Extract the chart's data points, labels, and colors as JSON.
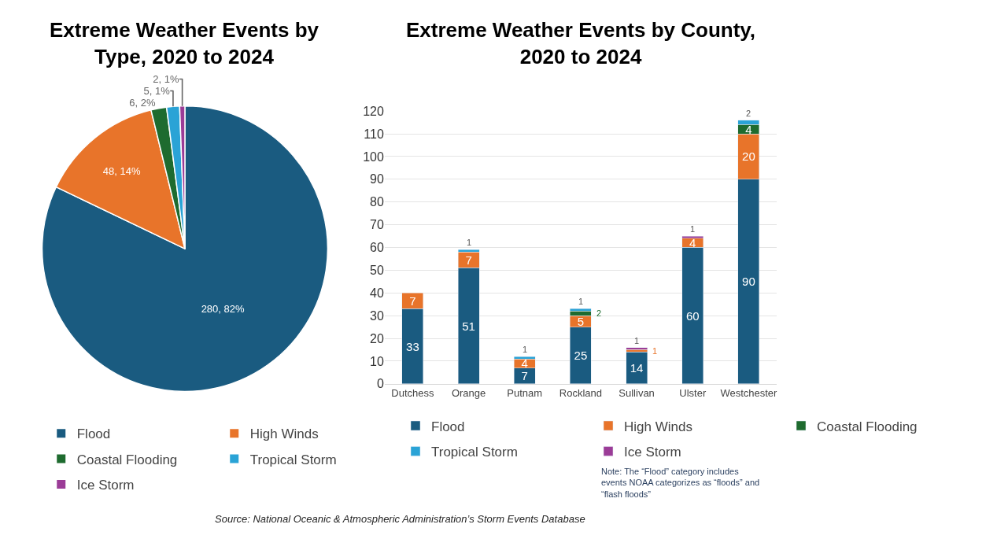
{
  "chart_data": [
    {
      "type": "pie",
      "title": "Extreme Weather Events by\nType, 2020 to 2024",
      "categories": [
        "Flood",
        "High Winds",
        "Coastal Flooding",
        "Tropical Storm",
        "Ice Storm"
      ],
      "values": [
        280,
        48,
        6,
        5,
        2
      ],
      "value_labels": [
        "280, 82%",
        "48, 14%",
        "6, 2%",
        "5, 1%",
        "2, 1%"
      ],
      "colors": [
        "#1a5b80",
        "#e8742a",
        "#1e6b2f",
        "#2aa3d6",
        "#9b3c97"
      ],
      "legend": "bottom"
    },
    {
      "type": "bar",
      "stacked": true,
      "title": "Extreme Weather Events by County,\n2020 to 2024",
      "categories": [
        "Dutchess",
        "Orange",
        "Putnam",
        "Rockland",
        "Sullivan",
        "Ulster",
        "Westchester"
      ],
      "series": [
        {
          "name": "Flood",
          "color": "#1a5b80",
          "values": [
            33,
            51,
            7,
            25,
            14,
            60,
            90
          ]
        },
        {
          "name": "High Winds",
          "color": "#e8742a",
          "values": [
            7,
            7,
            4,
            5,
            1,
            4,
            20
          ]
        },
        {
          "name": "Coastal Flooding",
          "color": "#1e6b2f",
          "values": [
            null,
            null,
            null,
            2,
            null,
            null,
            4
          ]
        },
        {
          "name": "Tropical Storm",
          "color": "#2aa3d6",
          "values": [
            null,
            1,
            1,
            1,
            null,
            null,
            2
          ]
        },
        {
          "name": "Ice Storm",
          "color": "#9b3c97",
          "values": [
            null,
            null,
            null,
            null,
            1,
            1,
            null
          ]
        }
      ],
      "ylim": [
        0,
        120
      ],
      "yticks": [
        0,
        10,
        20,
        30,
        40,
        50,
        60,
        70,
        80,
        90,
        100,
        110,
        120
      ],
      "grid": "y",
      "data_labels": true,
      "legend": "bottom",
      "annotations": [
        "Note: The “Flood” category includes\nevents NOAA categorizes as “floods” and\n“flash floods”",
        "Source: National Oceanic & Atmospheric Administration’s Storm Events Database"
      ]
    }
  ]
}
